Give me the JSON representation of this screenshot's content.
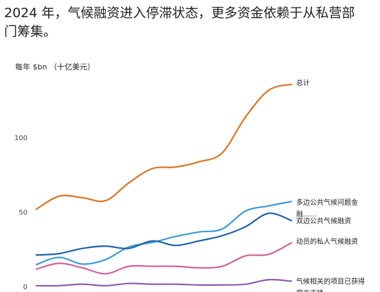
{
  "chart_data": {
    "type": "line",
    "title": "2024 年，气候融资进入停滞状态，更多资金依赖于从私营部门筹集。",
    "y_label": "每年 $bn （十亿美元）",
    "categories": [
      null,
      null,
      null,
      null,
      null,
      null,
      null,
      null,
      null,
      null,
      null,
      null
    ],
    "ylim": [
      0,
      140
    ],
    "yticks": [
      0,
      50,
      100
    ],
    "grid": false,
    "series": [
      {
        "name": "总计",
        "color": "#d9731f",
        "values": [
          52,
          61,
          60,
          58,
          70,
          79.5,
          80.5,
          84,
          90,
          114,
          132,
          136
        ]
      },
      {
        "name": "多边公共气候问题金融……",
        "color": "#3a9bd5",
        "values": [
          15,
          20,
          15.5,
          18.5,
          27,
          30,
          34,
          37,
          39,
          51,
          54.5,
          57.5
        ]
      },
      {
        "name": "双边公共气候融资",
        "color": "#1f5fa8",
        "values": [
          21.5,
          22.5,
          26,
          27.5,
          26,
          31,
          28,
          31,
          34.5,
          40.5,
          49.5,
          44.5
        ]
      },
      {
        "name": "动员的私人气候融资",
        "color": "#d35f95",
        "values": [
          12,
          16,
          13,
          9,
          14,
          14,
          14,
          13,
          14,
          21,
          22,
          30
        ]
      },
      {
        "name": "气候相关的项目已获得官方支持……",
        "color": "#8b5bb5",
        "values": [
          1,
          1,
          2,
          1,
          2.5,
          2,
          2,
          1.5,
          1.5,
          2,
          5,
          4
        ]
      }
    ]
  }
}
